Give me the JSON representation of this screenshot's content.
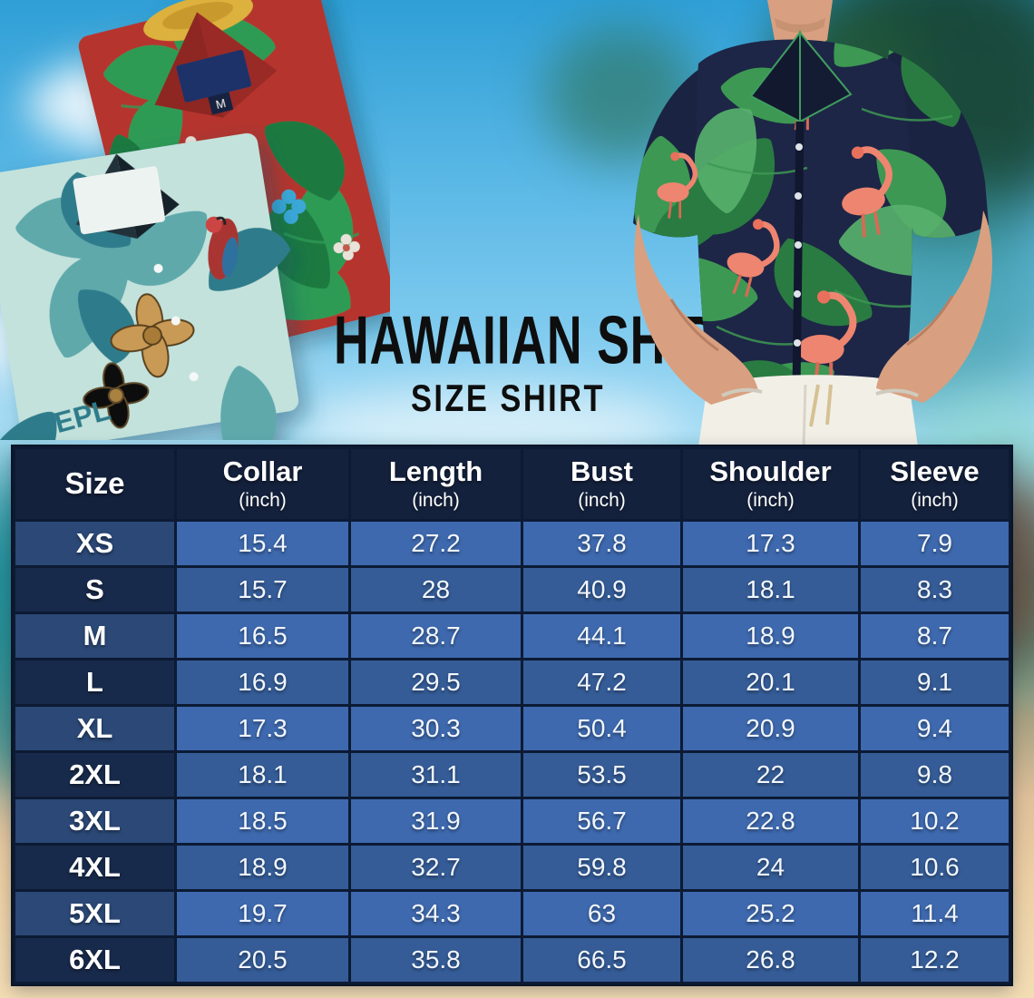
{
  "title": {
    "main": "HAWAIIAN SHIRT",
    "sub": "SIZE SHIRT"
  },
  "hero": {
    "left_photo": "two-folded-hawaiian-shirts",
    "right_photo": "man-wearing-navy-flamingo-hawaiian-shirt",
    "shirt_tag_label": "M",
    "shirt_pattern_text": "EPL"
  },
  "table": {
    "columns": [
      {
        "label": "Size",
        "unit": ""
      },
      {
        "label": "Collar",
        "unit": "(inch)"
      },
      {
        "label": "Length",
        "unit": "(inch)"
      },
      {
        "label": "Bust",
        "unit": "(inch)"
      },
      {
        "label": "Shoulder",
        "unit": "(inch)"
      },
      {
        "label": "Sleeve",
        "unit": "(inch)"
      }
    ],
    "rows": [
      {
        "size": "XS",
        "values": [
          "15.4",
          "27.2",
          "37.8",
          "17.3",
          "7.9"
        ]
      },
      {
        "size": "S",
        "values": [
          "15.7",
          "28",
          "40.9",
          "18.1",
          "8.3"
        ]
      },
      {
        "size": "M",
        "values": [
          "16.5",
          "28.7",
          "44.1",
          "18.9",
          "8.7"
        ]
      },
      {
        "size": "L",
        "values": [
          "16.9",
          "29.5",
          "47.2",
          "20.1",
          "9.1"
        ]
      },
      {
        "size": "XL",
        "values": [
          "17.3",
          "30.3",
          "50.4",
          "20.9",
          "9.4"
        ]
      },
      {
        "size": "2XL",
        "values": [
          "18.1",
          "31.1",
          "53.5",
          "22",
          "9.8"
        ]
      },
      {
        "size": "3XL",
        "values": [
          "18.5",
          "31.9",
          "56.7",
          "22.8",
          "10.2"
        ]
      },
      {
        "size": "4XL",
        "values": [
          "18.9",
          "32.7",
          "59.8",
          "24",
          "10.6"
        ]
      },
      {
        "size": "5XL",
        "values": [
          "19.7",
          "34.3",
          "63",
          "25.2",
          "11.4"
        ]
      },
      {
        "size": "6XL",
        "values": [
          "20.5",
          "35.8",
          "66.5",
          "26.8",
          "12.2"
        ]
      }
    ]
  },
  "colors": {
    "header_bg": "#14213c",
    "size_cell_odd": "#2b4876",
    "size_cell_even": "#182a4b",
    "data_cell_odd": "#3e69ae",
    "data_cell_even": "#355c97",
    "grid_line": "#0c1a33",
    "table_text": "#ffffff",
    "title_text": "#0e0e0e",
    "sky": "#55b5e4",
    "sand": "#eccfa4"
  }
}
